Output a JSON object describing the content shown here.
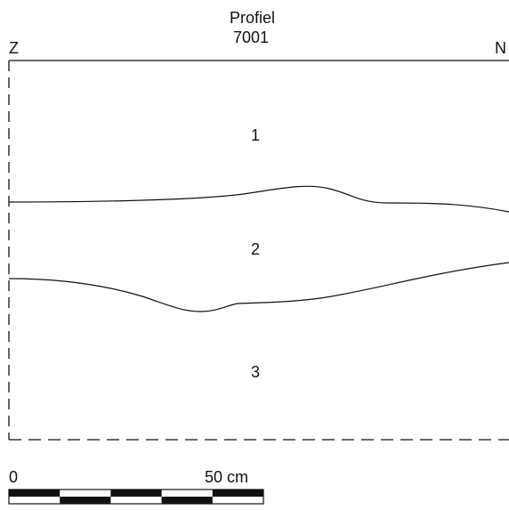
{
  "title": {
    "line1": "Profiel",
    "line2": "7001"
  },
  "orientation": {
    "left": "Z",
    "right": "N"
  },
  "layers": [
    {
      "label": "1"
    },
    {
      "label": "2"
    },
    {
      "label": "3"
    }
  ],
  "scale": {
    "start_label": "0",
    "end_label": "50 cm"
  },
  "colors": {
    "line": "#111111",
    "background": "#ffffff"
  }
}
